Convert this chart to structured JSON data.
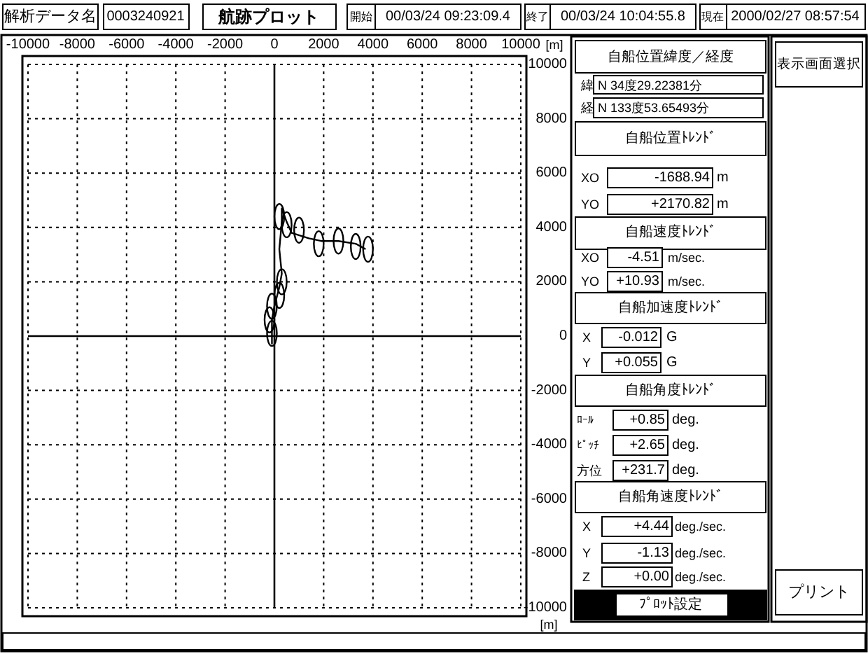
{
  "chart_data": {
    "type": "line",
    "title": "航跡プロット",
    "xlabel": "[m]",
    "ylabel": "[m]",
    "xlim": [
      -10000,
      10000
    ],
    "ylim": [
      -10000,
      10000
    ],
    "xticks": [
      -10000,
      -8000,
      -6000,
      -4000,
      -2000,
      0,
      2000,
      4000,
      6000,
      8000,
      10000
    ],
    "yticks": [
      -10000,
      -8000,
      -6000,
      -4000,
      -2000,
      0,
      2000,
      4000,
      6000,
      8000,
      10000
    ],
    "grid": true,
    "line_style": "solid",
    "series": [
      {
        "color": "#000000",
        "marker": "none",
        "x": [
          -100,
          -100,
          0,
          200,
          300,
          200,
          300,
          300,
          500,
          700,
          1400,
          1900,
          2600,
          3300,
          3700
        ],
        "values": [
          -300,
          600,
          1100,
          1800,
          2300,
          3200,
          4200,
          4700,
          4200,
          3800,
          3600,
          3500,
          3500,
          3400,
          3200
        ]
      },
      {
        "type": "scatter",
        "color": "#000000",
        "marker": "circle",
        "x": [
          200,
          500,
          1000,
          1800,
          2600,
          3300,
          3800,
          300,
          200,
          -100,
          -200,
          -100
        ],
        "values": [
          4400,
          4100,
          3900,
          3400,
          3500,
          3300,
          3200,
          2000,
          1500,
          1100,
          600,
          100
        ]
      }
    ],
    "annotations": [
      "解析データ名",
      "0003240921",
      "開始",
      "00/03/24 09:23:09.4",
      "終了",
      "00/03/24 10:04:55.8",
      "現在",
      "2000/02/27 08:57:54",
      "自船位置緯度／経度",
      "緯",
      "N  34度29.22381分",
      "経",
      "N 133度53.65493分",
      "自船位置ﾄﾚﾝﾄﾞ",
      "XO",
      "-1688.94",
      "m",
      "YO",
      "+2170.82",
      "m",
      "自船速度ﾄﾚﾝﾄﾞ",
      "XO",
      "-4.51",
      "m/sec.",
      "YO",
      "+10.93",
      "m/sec.",
      "自船加速度ﾄﾚﾝﾄﾞ",
      "X",
      "-0.012",
      "G",
      "Y",
      "+0.055",
      "G",
      "自船角度ﾄﾚﾝﾄﾞ",
      "ﾛｰﾙ",
      "+0.85",
      "deg.",
      "ﾋﾟｯﾁ",
      "+2.65",
      "deg.",
      "方位",
      "+231.7",
      "deg.",
      "自船角速度ﾄﾚﾝﾄﾞ",
      "X",
      "+4.44",
      "deg./sec.",
      "Y",
      "-1.13",
      "deg./sec.",
      "Z",
      "+0.00",
      "deg./sec.",
      "ﾌﾟﾛｯﾄ設定",
      "表示画面選択",
      "プリント"
    ]
  }
}
